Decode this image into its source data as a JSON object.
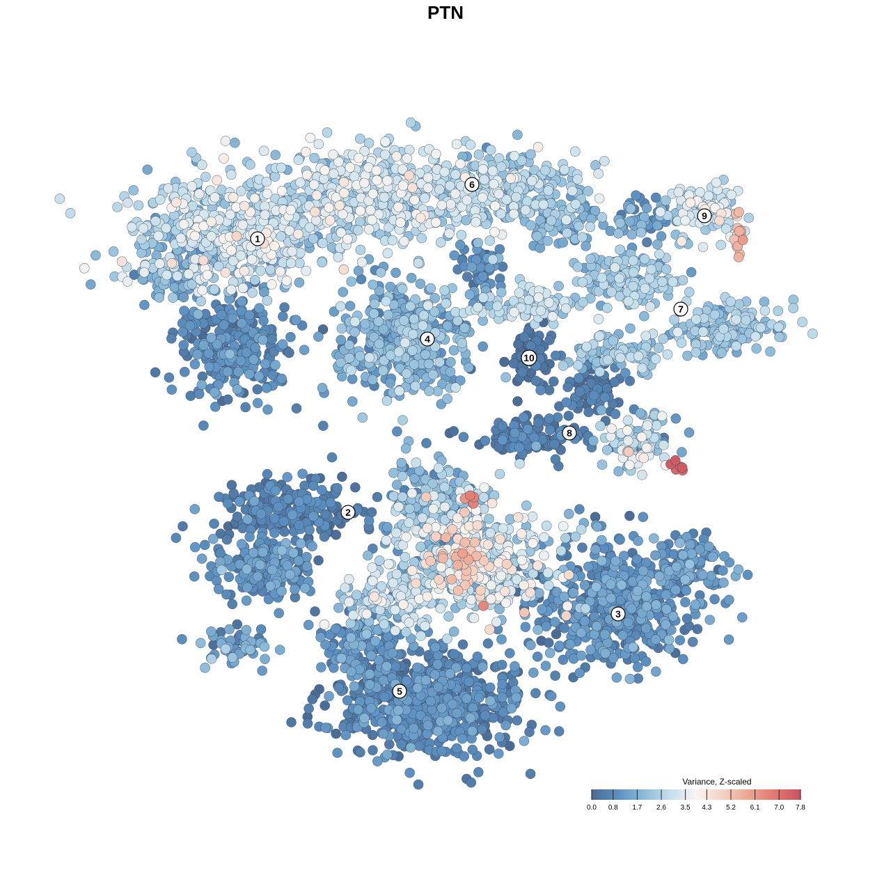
{
  "chart_data": {
    "type": "scatter",
    "title": "PTN",
    "legend": {
      "title": "Variance, Z-scaled",
      "placement": "bottom-right",
      "range": [
        0.0,
        7.8
      ],
      "tick_values": [
        0.0,
        0.8,
        1.7,
        2.6,
        3.5,
        4.3,
        5.2,
        6.1,
        7.0,
        7.8
      ],
      "tick_labels": [
        "0.0",
        "0.8",
        "1.7",
        "2.6",
        "3.5",
        "4.3",
        "5.2",
        "6.1",
        "7.0",
        "7.8"
      ]
    },
    "colorscale": [
      "#4a6a93",
      "#5b8fc0",
      "#8dbbd9",
      "#c5dfec",
      "#f7f4f1",
      "#f6d3c4",
      "#eda590",
      "#e27a72",
      "#c9525e"
    ],
    "axes": {
      "visible": false,
      "grid": false
    },
    "clusters": [
      {
        "label": "1",
        "center": [
          370,
          343
        ],
        "value_mean": 2.6
      },
      {
        "label": "2",
        "center": [
          500,
          736
        ],
        "value_mean": 0.6
      },
      {
        "label": "3",
        "center": [
          888,
          882
        ],
        "value_mean": 0.9
      },
      {
        "label": "4",
        "center": [
          614,
          487
        ],
        "value_mean": 1.6
      },
      {
        "label": "5",
        "center": [
          574,
          993
        ],
        "value_mean": 0.7
      },
      {
        "label": "6",
        "center": [
          678,
          265
        ],
        "value_mean": 2.7
      },
      {
        "label": "7",
        "center": [
          978,
          444
        ],
        "value_mean": 2.1
      },
      {
        "label": "8",
        "center": [
          818,
          622
        ],
        "value_mean": 0.5
      },
      {
        "label": "9",
        "center": [
          1012,
          310
        ],
        "value_mean": 2.3
      },
      {
        "label": "10",
        "center": [
          760,
          514
        ],
        "value_mean": 0.3
      }
    ]
  }
}
